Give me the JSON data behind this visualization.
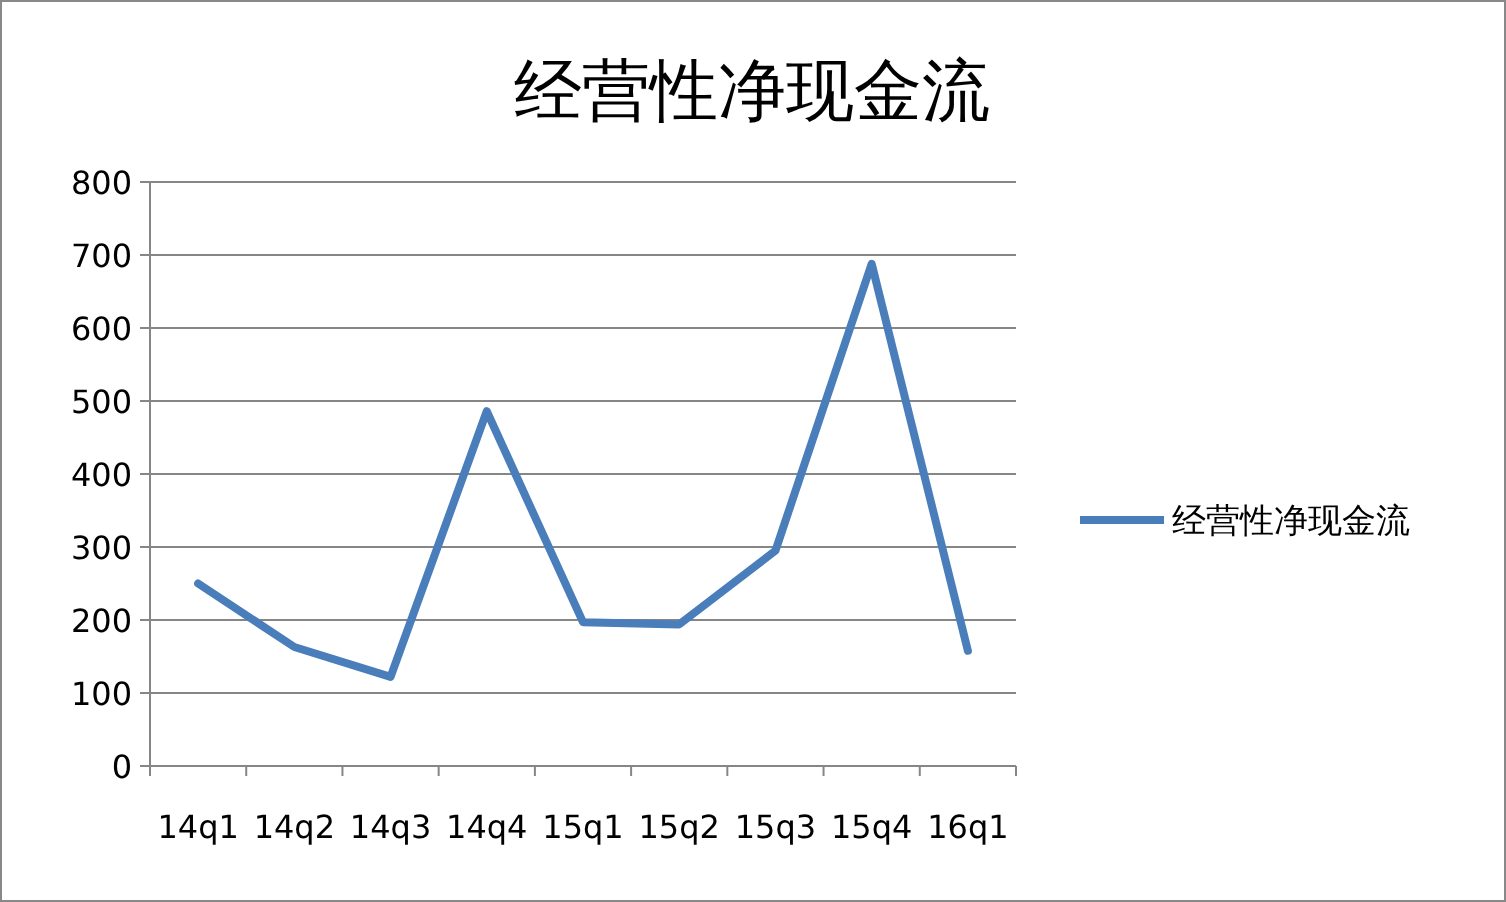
{
  "chart_data": {
    "type": "line",
    "title": "经营性净现金流",
    "categories": [
      "14q1",
      "14q2",
      "14q3",
      "14q4",
      "15q1",
      "15q2",
      "15q3",
      "15q4",
      "16q1"
    ],
    "series": [
      {
        "name": "经营性净现金流",
        "color": "#4a7ebb",
        "values": [
          250,
          163,
          122,
          486,
          197,
          194,
          295,
          688,
          158
        ]
      }
    ],
    "ylim": [
      0,
      800
    ],
    "yticks": [
      0,
      100,
      200,
      300,
      400,
      500,
      600,
      700,
      800
    ],
    "grid": "y",
    "legend": "right",
    "marker": "none",
    "line_style": "solid"
  }
}
